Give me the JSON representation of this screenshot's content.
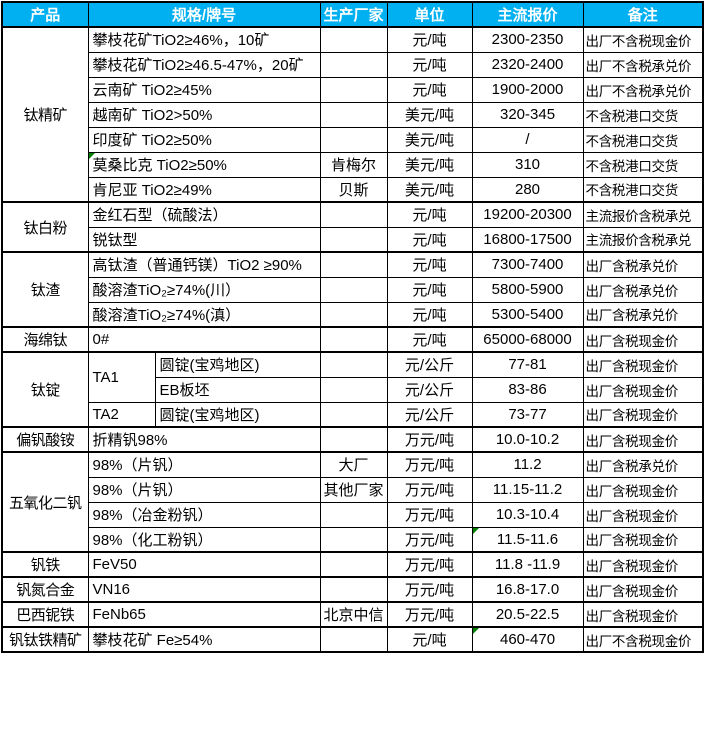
{
  "colors": {
    "header_bg": "#00B0F0",
    "header_text": "#FFFFFF",
    "border": "#000000",
    "comment_marker": "#008000",
    "cell_bg": "#FFFFFF"
  },
  "table": {
    "headers": [
      "产品",
      "规格/牌号",
      "生产厂家",
      "单位",
      "主流报价",
      "备注"
    ],
    "groups": [
      {
        "product": "钛精矿",
        "rows": [
          {
            "spec": "攀枝花矿TiO2≥46%，10矿",
            "maker": "",
            "unit": "元/吨",
            "price": "2300-2350",
            "note": "出厂不含税现金价"
          },
          {
            "spec": "攀枝花矿TiO2≥46.5-47%，20矿",
            "maker": "",
            "unit": "元/吨",
            "price": "2320-2400",
            "note": "出厂不含税承兑价"
          },
          {
            "spec": "云南矿 TiO2≥45%",
            "maker": "",
            "unit": "元/吨",
            "price": "1900-2000",
            "note": "出厂不含税承兑价"
          },
          {
            "spec": "越南矿 TiO2>50%",
            "maker": "",
            "unit": "美元/吨",
            "price": "320-345",
            "note": "不含税港口交货"
          },
          {
            "spec": "印度矿 TiO2≥50%",
            "maker": "",
            "unit": "美元/吨",
            "price": "/",
            "note": "不含税港口交货"
          },
          {
            "spec": "莫桑比克 TiO2≥50%",
            "maker": "肯梅尔",
            "unit": "美元/吨",
            "price": "310",
            "note": "不含税港口交货",
            "spec_marker": true
          },
          {
            "spec": "肯尼亚 TiO2≥49%",
            "maker": "贝斯",
            "unit": "美元/吨",
            "price": "280",
            "note": "不含税港口交货"
          }
        ]
      },
      {
        "product": "钛白粉",
        "rows": [
          {
            "spec": "金红石型（硫酸法）",
            "maker": "",
            "unit": "元/吨",
            "price": "19200-20300",
            "note": "主流报价含税承兑"
          },
          {
            "spec": "锐钛型",
            "maker": "",
            "unit": "元/吨",
            "price": "16800-17500",
            "note": "主流报价含税承兑"
          }
        ]
      },
      {
        "product": "钛渣",
        "rows": [
          {
            "spec": "高钛渣（普通钙镁）TiO2 ≥90%",
            "maker": "",
            "unit": "元/吨",
            "price": "7300-7400",
            "note": "出厂含税承兑价"
          },
          {
            "spec": "酸溶渣TiO₂≥74%(川）",
            "maker": "",
            "unit": "元/吨",
            "price": "5800-5900",
            "note": "出厂含税承兑价"
          },
          {
            "spec": "酸溶渣TiO₂≥74%(滇）",
            "maker": "",
            "unit": "元/吨",
            "price": "5300-5400",
            "note": "出厂含税承兑价"
          }
        ]
      },
      {
        "product": "海绵钛",
        "rows": [
          {
            "spec": "0#",
            "maker": "",
            "unit": "元/吨",
            "price": "65000-68000",
            "note": "出厂含税现金价"
          }
        ]
      },
      {
        "product": "钛锭",
        "rows": [
          {
            "spec1": "TA1",
            "spec1_rowspan": 2,
            "spec2": "圆锭(宝鸡地区)",
            "maker": "",
            "unit": "元/公斤",
            "price": "77-81",
            "note": "出厂含税现金价"
          },
          {
            "spec2": "EB板坯",
            "maker": "",
            "unit": "元/公斤",
            "price": "83-86",
            "note": "出厂含税现金价"
          },
          {
            "spec1": "TA2",
            "spec1_rowspan": 1,
            "spec2": "圆锭(宝鸡地区)",
            "maker": "",
            "unit": "元/公斤",
            "price": "73-77",
            "note": "出厂含税现金价"
          }
        ]
      },
      {
        "product": "偏钒酸铵",
        "rows": [
          {
            "spec": "折精钒98%",
            "maker": "",
            "unit": "万元/吨",
            "price": "10.0-10.2",
            "note": "出厂含税现金价"
          }
        ]
      },
      {
        "product": "五氧化二钒",
        "rows": [
          {
            "spec": "98%（片钒）",
            "maker": "大厂",
            "unit": "万元/吨",
            "price": "11.2",
            "note": "出厂含税承兑价"
          },
          {
            "spec": "98%（片钒）",
            "maker": "其他厂家",
            "unit": "万元/吨",
            "price": "11.15-11.2",
            "note": "出厂含税现金价"
          },
          {
            "spec": "98%（冶金粉钒）",
            "maker": "",
            "unit": "万元/吨",
            "price": "10.3-10.4",
            "note": "出厂含税现金价"
          },
          {
            "spec": "98%（化工粉钒）",
            "maker": "",
            "unit": "万元/吨",
            "price": "11.5-11.6",
            "note": "出厂含税现金价",
            "price_marker": true
          }
        ]
      },
      {
        "product": "钒铁",
        "rows": [
          {
            "spec": "FeV50",
            "maker": "",
            "unit": "万元/吨",
            "price": "11.8 -11.9",
            "note": "出厂含税现金价"
          }
        ]
      },
      {
        "product": "钒氮合金",
        "rows": [
          {
            "spec": "VN16",
            "maker": "",
            "unit": "万元/吨",
            "price": "16.8-17.0",
            "note": "出厂含税现金价"
          }
        ]
      },
      {
        "product": "巴西铌铁",
        "rows": [
          {
            "spec": "FeNb65",
            "maker": "北京中信",
            "unit": "万元/吨",
            "price": "20.5-22.5",
            "note": "出厂含税现金价"
          }
        ]
      },
      {
        "product": "钒钛铁精矿",
        "rows": [
          {
            "spec": "攀枝花矿 Fe≥54%",
            "maker": "",
            "unit": "元/吨",
            "price": "460-470",
            "note": "出厂不含税现金价",
            "price_marker": true
          }
        ]
      }
    ]
  }
}
